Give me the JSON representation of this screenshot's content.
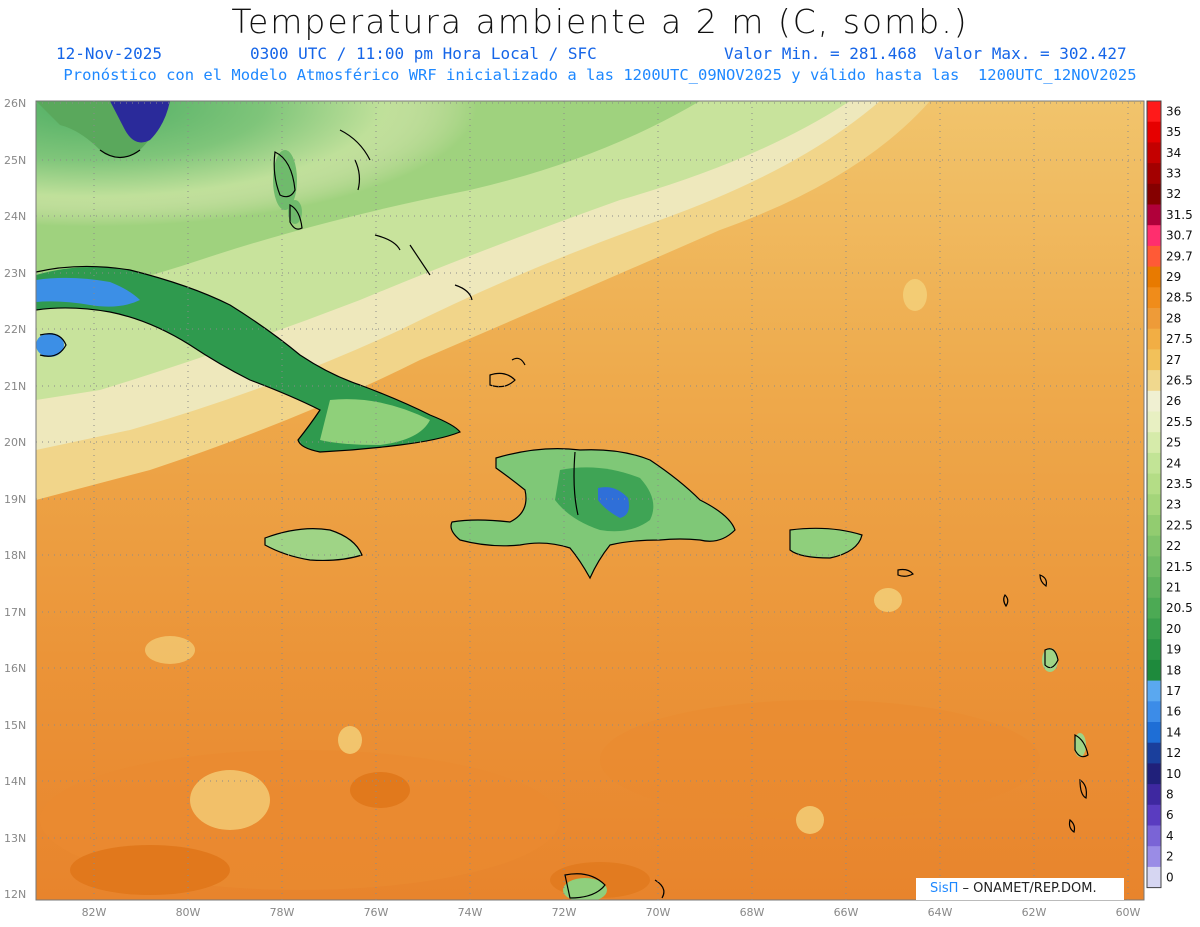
{
  "header": {
    "title": "Temperatura ambiente a 2 m (C, somb.)",
    "date": "12-Nov-2025",
    "time": "0300 UTC / 11:00 pm Hora Local / SFC",
    "min": "Valor Min. = 281.468",
    "max": "Valor Max. = 302.427",
    "forecast": "Pronóstico con el Modelo Atmosférico WRF inicializado a las 1200UTC_09NOV2025 y válido hasta las  1200UTC_12NOV2025"
  },
  "axes": {
    "lat_ticks": [
      "26N",
      "25N",
      "24N",
      "23N",
      "22N",
      "21N",
      "20N",
      "19N",
      "18N",
      "17N",
      "16N",
      "15N",
      "14N",
      "13N",
      "12N"
    ],
    "lon_ticks": [
      "82W",
      "80W",
      "78W",
      "76W",
      "74W",
      "72W",
      "70W",
      "68W",
      "66W",
      "64W",
      "62W",
      "60W"
    ]
  },
  "colorbar": {
    "labels": [
      "36",
      "35",
      "34",
      "33",
      "32",
      "31.5",
      "30.7",
      "29.7",
      "29",
      "28.5",
      "28",
      "27.5",
      "27",
      "26.5",
      "26",
      "25.5",
      "25",
      "24",
      "23.5",
      "23",
      "22.5",
      "22",
      "21.5",
      "21",
      "20.5",
      "20",
      "19",
      "18",
      "17",
      "16",
      "14",
      "12",
      "10",
      "8",
      "6",
      "4",
      "2",
      "0"
    ],
    "colors": [
      "#ff1a1a",
      "#e60000",
      "#c40000",
      "#a30000",
      "#850000",
      "#b0003a",
      "#ff2e6e",
      "#ff5a36",
      "#e87a00",
      "#f08c1a",
      "#ee9b38",
      "#f2ae44",
      "#f2c15a",
      "#f0d88e",
      "#f0f0d2",
      "#e8f0c2",
      "#d6ebaa",
      "#c2e496",
      "#b4dd86",
      "#a4d57a",
      "#92cc70",
      "#80c36a",
      "#70bb64",
      "#5fb25c",
      "#4caa54",
      "#3a9f4c",
      "#2a9444",
      "#1e8a3c",
      "#5aa8f0",
      "#3c8ce8",
      "#1e6ed6",
      "#1a3f9c",
      "#20207a",
      "#3e28a0",
      "#5a3cc0",
      "#7a64d6",
      "#9a8ce6",
      "#d6d6f2"
    ]
  },
  "credit": {
    "brand": "SisΠ",
    "text": " – ONAMET/REP.DOM."
  }
}
